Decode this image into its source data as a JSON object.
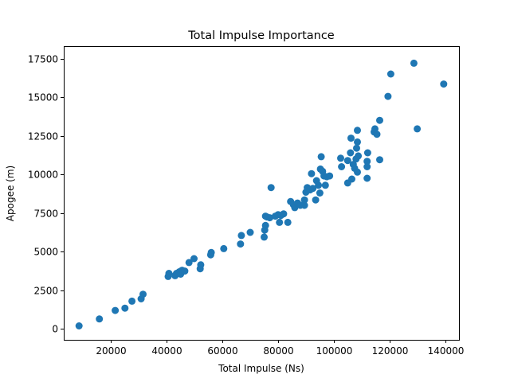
{
  "chart_data": {
    "type": "scatter",
    "title": "Total Impulse Importance",
    "xlabel": "Total Impulse (Ns)",
    "ylabel": "Apogee (m)",
    "xlim": [
      3000,
      145000
    ],
    "ylim": [
      -700,
      18300
    ],
    "xticks": [
      20000,
      40000,
      60000,
      80000,
      100000,
      120000,
      140000
    ],
    "yticks": [
      0,
      2500,
      5000,
      7500,
      10000,
      12500,
      15000,
      17500
    ],
    "grid": false,
    "marker_color": "#1f77b4",
    "points": [
      [
        8500,
        200
      ],
      [
        15800,
        650
      ],
      [
        21500,
        1200
      ],
      [
        25000,
        1350
      ],
      [
        27500,
        1800
      ],
      [
        30800,
        1950
      ],
      [
        31500,
        2250
      ],
      [
        40500,
        3400
      ],
      [
        40800,
        3600
      ],
      [
        43000,
        3450
      ],
      [
        43500,
        3600
      ],
      [
        44500,
        3700
      ],
      [
        45000,
        3550
      ],
      [
        45500,
        3800
      ],
      [
        46500,
        3750
      ],
      [
        48000,
        4300
      ],
      [
        49800,
        4550
      ],
      [
        52000,
        3900
      ],
      [
        52200,
        4150
      ],
      [
        55800,
        4800
      ],
      [
        56000,
        4950
      ],
      [
        60500,
        5200
      ],
      [
        66500,
        5500
      ],
      [
        66800,
        6050
      ],
      [
        70000,
        6250
      ],
      [
        75000,
        5950
      ],
      [
        75200,
        6400
      ],
      [
        75500,
        6700
      ],
      [
        75500,
        7300
      ],
      [
        76000,
        7250
      ],
      [
        77000,
        7200
      ],
      [
        77500,
        9150
      ],
      [
        79000,
        7300
      ],
      [
        80000,
        7400
      ],
      [
        80500,
        6900
      ],
      [
        81000,
        7350
      ],
      [
        82000,
        7450
      ],
      [
        83500,
        6900
      ],
      [
        84500,
        8250
      ],
      [
        85500,
        8050
      ],
      [
        86000,
        7850
      ],
      [
        87000,
        8150
      ],
      [
        88000,
        8000
      ],
      [
        89500,
        8000
      ],
      [
        89500,
        8350
      ],
      [
        90000,
        8850
      ],
      [
        90500,
        9150
      ],
      [
        91500,
        9000
      ],
      [
        92000,
        10050
      ],
      [
        92500,
        9100
      ],
      [
        93500,
        8350
      ],
      [
        93800,
        9600
      ],
      [
        94500,
        9300
      ],
      [
        95000,
        8800
      ],
      [
        95200,
        10350
      ],
      [
        95500,
        11150
      ],
      [
        96000,
        10200
      ],
      [
        96500,
        9900
      ],
      [
        97000,
        9300
      ],
      [
        97500,
        9850
      ],
      [
        98500,
        9900
      ],
      [
        102500,
        11050
      ],
      [
        102800,
        10500
      ],
      [
        105000,
        9450
      ],
      [
        105000,
        10900
      ],
      [
        106000,
        11400
      ],
      [
        106200,
        12350
      ],
      [
        106500,
        9700
      ],
      [
        107000,
        10650
      ],
      [
        107500,
        10400
      ],
      [
        108000,
        11000
      ],
      [
        108200,
        11700
      ],
      [
        108500,
        10150
      ],
      [
        108500,
        12100
      ],
      [
        108500,
        12850
      ],
      [
        108800,
        11200
      ],
      [
        112000,
        9750
      ],
      [
        112000,
        10500
      ],
      [
        112000,
        10850
      ],
      [
        112200,
        11400
      ],
      [
        114500,
        12750
      ],
      [
        114800,
        12950
      ],
      [
        115500,
        12600
      ],
      [
        116500,
        13500
      ],
      [
        116500,
        10950
      ],
      [
        119500,
        15050
      ],
      [
        120500,
        16500
      ],
      [
        128800,
        17200
      ],
      [
        130000,
        12950
      ],
      [
        139500,
        15850
      ]
    ]
  }
}
